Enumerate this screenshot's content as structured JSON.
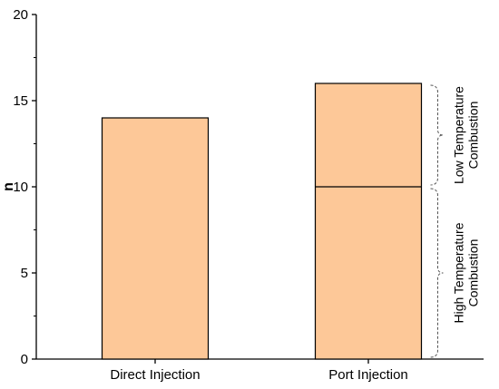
{
  "chart_data": {
    "type": "bar",
    "xlabel": "",
    "ylabel": "n",
    "ylim": [
      0,
      20
    ],
    "yticks": [
      0,
      5,
      10,
      15,
      20
    ],
    "categories": [
      "Direct Injection",
      "Port Injection"
    ],
    "values": [
      14,
      16
    ],
    "segments": [
      {
        "category": "Port Injection",
        "from": 0,
        "to": 10,
        "annotation": [
          "High Temperature",
          "Combustion"
        ]
      },
      {
        "category": "Port Injection",
        "from": 10,
        "to": 16,
        "annotation": [
          "Low Temperature",
          "Combustion"
        ]
      }
    ],
    "bar_color": "#fdc898",
    "edge_color": "#000000",
    "grid": false
  }
}
